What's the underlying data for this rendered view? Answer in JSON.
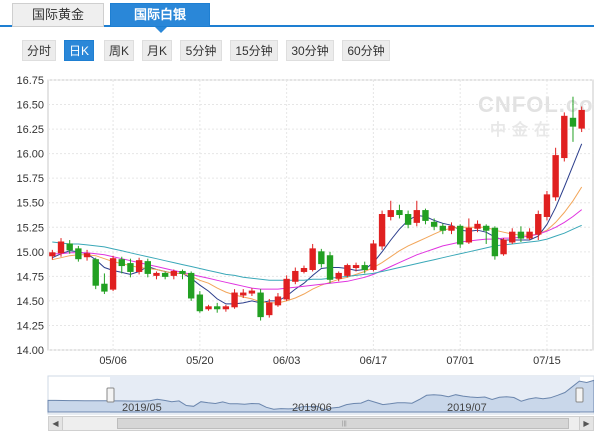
{
  "tabs": [
    {
      "label": "国际黄金",
      "active": false
    },
    {
      "label": "国际白银",
      "active": true
    }
  ],
  "periods": [
    {
      "label": "分时",
      "active": false
    },
    {
      "label": "日K",
      "active": true
    },
    {
      "label": "周K",
      "active": false
    },
    {
      "label": "月K",
      "active": false
    },
    {
      "label": "5分钟",
      "active": false
    },
    {
      "label": "15分钟",
      "active": false
    },
    {
      "label": "30分钟",
      "active": false
    },
    {
      "label": "60分钟",
      "active": false
    }
  ],
  "watermark": {
    "text": "CNFOL.com",
    "subtext": "中金在"
  },
  "navigator": {
    "labels": [
      "2019/05",
      "2019/06",
      "2019/07"
    ]
  },
  "colors": {
    "up": "#e02020",
    "down": "#22a022",
    "ma5": "#2c3e8c",
    "ma10": "#f2a65a",
    "ma20": "#e033e0",
    "ma30": "#3aa8b8",
    "accent": "#2a87d8"
  },
  "chart_data": {
    "type": "candlestick",
    "ylim": [
      14.0,
      16.75
    ],
    "yticks": [
      "16.75",
      "16.50",
      "16.25",
      "16.00",
      "15.75",
      "15.50",
      "15.25",
      "15.00",
      "14.75",
      "14.50",
      "14.25",
      "14.00"
    ],
    "xticks": [
      {
        "label": "05/06",
        "index": 7
      },
      {
        "label": "05/20",
        "index": 17
      },
      {
        "label": "06/03",
        "index": 27
      },
      {
        "label": "06/17",
        "index": 37
      },
      {
        "label": "07/01",
        "index": 47
      },
      {
        "label": "07/15",
        "index": 57
      }
    ],
    "candles": [
      [
        14.96,
        14.99,
        14.92,
        15.02
      ],
      [
        14.99,
        15.1,
        14.95,
        15.14
      ],
      [
        15.08,
        15.02,
        14.98,
        15.12
      ],
      [
        15.03,
        14.93,
        14.9,
        15.06
      ],
      [
        14.95,
        14.98,
        14.91,
        15.02
      ],
      [
        14.92,
        14.66,
        14.62,
        14.94
      ],
      [
        14.67,
        14.6,
        14.57,
        14.78
      ],
      [
        14.62,
        14.93,
        14.6,
        14.96
      ],
      [
        14.92,
        14.86,
        14.78,
        14.95
      ],
      [
        14.88,
        14.8,
        14.74,
        14.93
      ],
      [
        14.8,
        14.91,
        14.77,
        14.94
      ],
      [
        14.9,
        14.78,
        14.74,
        14.93
      ],
      [
        14.76,
        14.78,
        14.72,
        14.8
      ],
      [
        14.78,
        14.75,
        14.72,
        14.8
      ],
      [
        14.76,
        14.8,
        14.72,
        14.82
      ],
      [
        14.8,
        14.78,
        14.72,
        14.82
      ],
      [
        14.78,
        14.53,
        14.5,
        14.8
      ],
      [
        14.56,
        14.4,
        14.38,
        14.6
      ],
      [
        14.42,
        14.44,
        14.4,
        14.46
      ],
      [
        14.44,
        14.42,
        14.38,
        14.48
      ],
      [
        14.42,
        14.44,
        14.39,
        14.46
      ],
      [
        14.44,
        14.58,
        14.42,
        14.62
      ],
      [
        14.56,
        14.58,
        14.53,
        14.62
      ],
      [
        14.58,
        14.6,
        14.55,
        14.63
      ],
      [
        14.58,
        14.34,
        14.3,
        14.62
      ],
      [
        14.36,
        14.48,
        14.33,
        14.52
      ],
      [
        14.46,
        14.54,
        14.44,
        14.58
      ],
      [
        14.52,
        14.72,
        14.5,
        14.76
      ],
      [
        14.7,
        14.8,
        14.67,
        14.84
      ],
      [
        14.8,
        14.83,
        14.78,
        14.86
      ],
      [
        14.82,
        15.03,
        14.8,
        15.08
      ],
      [
        15.0,
        14.88,
        14.84,
        15.03
      ],
      [
        14.96,
        14.72,
        14.68,
        15.0
      ],
      [
        14.73,
        14.78,
        14.7,
        14.8
      ],
      [
        14.76,
        14.86,
        14.74,
        14.88
      ],
      [
        14.84,
        14.86,
        14.8,
        14.89
      ],
      [
        14.86,
        14.82,
        14.78,
        14.9
      ],
      [
        14.82,
        15.08,
        14.8,
        15.12
      ],
      [
        15.06,
        15.38,
        15.02,
        15.42
      ],
      [
        15.36,
        15.42,
        15.32,
        15.52
      ],
      [
        15.42,
        15.38,
        15.34,
        15.48
      ],
      [
        15.38,
        15.28,
        15.24,
        15.42
      ],
      [
        15.3,
        15.42,
        15.26,
        15.52
      ],
      [
        15.42,
        15.32,
        15.28,
        15.44
      ],
      [
        15.3,
        15.26,
        15.22,
        15.34
      ],
      [
        15.26,
        15.22,
        15.18,
        15.29
      ],
      [
        15.22,
        15.26,
        15.18,
        15.3
      ],
      [
        15.26,
        15.08,
        15.04,
        15.28
      ],
      [
        15.1,
        15.24,
        15.08,
        15.34
      ],
      [
        15.24,
        15.28,
        15.2,
        15.32
      ],
      [
        15.26,
        15.22,
        15.08,
        15.28
      ],
      [
        15.24,
        14.96,
        14.92,
        15.26
      ],
      [
        14.98,
        15.12,
        14.96,
        15.14
      ],
      [
        15.1,
        15.2,
        15.08,
        15.24
      ],
      [
        15.2,
        15.14,
        15.1,
        15.26
      ],
      [
        15.14,
        15.2,
        15.12,
        15.24
      ],
      [
        15.18,
        15.38,
        15.12,
        15.42
      ],
      [
        15.36,
        15.58,
        15.32,
        15.62
      ],
      [
        15.56,
        15.98,
        15.52,
        16.06
      ],
      [
        15.96,
        16.38,
        15.92,
        16.42
      ],
      [
        16.36,
        16.28,
        16.12,
        16.58
      ],
      [
        16.26,
        16.44,
        16.22,
        16.48
      ]
    ],
    "ma": [
      {
        "name": "MA5",
        "values": [
          14.94,
          14.98,
          15.01,
          15.0,
          14.98,
          14.92,
          14.84,
          14.81,
          14.79,
          14.77,
          14.8,
          14.85,
          14.82,
          14.8,
          14.78,
          14.78,
          14.73,
          14.66,
          14.6,
          14.52,
          14.47,
          14.47,
          14.48,
          14.5,
          14.48,
          14.5,
          14.5,
          14.55,
          14.62,
          14.68,
          14.76,
          14.83,
          14.84,
          14.84,
          14.83,
          14.81,
          14.82,
          14.89,
          15.0,
          15.12,
          15.23,
          15.32,
          15.37,
          15.36,
          15.32,
          15.29,
          15.27,
          15.22,
          15.21,
          15.22,
          15.2,
          15.15,
          15.12,
          15.12,
          15.12,
          15.12,
          15.16,
          15.28,
          15.45,
          15.66,
          15.88,
          16.1
        ]
      },
      {
        "name": "MA10",
        "values": [
          14.92,
          14.94,
          14.96,
          14.97,
          14.97,
          14.96,
          14.93,
          14.9,
          14.88,
          14.86,
          14.84,
          14.83,
          14.82,
          14.8,
          14.78,
          14.78,
          14.75,
          14.71,
          14.68,
          14.63,
          14.59,
          14.56,
          14.54,
          14.52,
          14.49,
          14.48,
          14.48,
          14.5,
          14.53,
          14.57,
          14.62,
          14.66,
          14.69,
          14.72,
          14.74,
          14.77,
          14.8,
          14.84,
          14.89,
          14.95,
          15.01,
          15.06,
          15.1,
          15.14,
          15.18,
          15.22,
          15.24,
          15.25,
          15.25,
          15.25,
          15.25,
          15.22,
          15.2,
          15.18,
          15.17,
          15.17,
          15.18,
          15.22,
          15.3,
          15.4,
          15.52,
          15.66
        ]
      },
      {
        "name": "MA20",
        "values": [
          14.98,
          14.98,
          14.99,
          14.99,
          14.99,
          14.98,
          14.97,
          14.95,
          14.93,
          14.91,
          14.89,
          14.87,
          14.85,
          14.83,
          14.81,
          14.79,
          14.77,
          14.75,
          14.73,
          14.71,
          14.69,
          14.67,
          14.65,
          14.63,
          14.62,
          14.62,
          14.62,
          14.63,
          14.64,
          14.65,
          14.66,
          14.67,
          14.68,
          14.69,
          14.7,
          14.72,
          14.74,
          14.77,
          14.81,
          14.85,
          14.89,
          14.93,
          14.97,
          15.0,
          15.03,
          15.06,
          15.08,
          15.1,
          15.11,
          15.12,
          15.13,
          15.13,
          15.14,
          15.14,
          15.15,
          15.16,
          15.18,
          15.21,
          15.25,
          15.3,
          15.36,
          15.43
        ]
      },
      {
        "name": "MA30",
        "values": [
          15.1,
          15.09,
          15.08,
          15.08,
          15.07,
          15.06,
          15.05,
          15.03,
          15.01,
          14.99,
          14.97,
          14.95,
          14.93,
          14.91,
          14.89,
          14.87,
          14.85,
          14.83,
          14.81,
          14.79,
          14.77,
          14.76,
          14.74,
          14.73,
          14.72,
          14.71,
          14.71,
          14.71,
          14.71,
          14.71,
          14.72,
          14.72,
          14.73,
          14.74,
          14.75,
          14.76,
          14.77,
          14.78,
          14.8,
          14.82,
          14.84,
          14.86,
          14.88,
          14.9,
          14.92,
          14.94,
          14.96,
          14.98,
          15.0,
          15.02,
          15.04,
          15.06,
          15.07,
          15.08,
          15.09,
          15.1,
          15.11,
          15.13,
          15.16,
          15.19,
          15.23,
          15.27
        ]
      }
    ]
  }
}
